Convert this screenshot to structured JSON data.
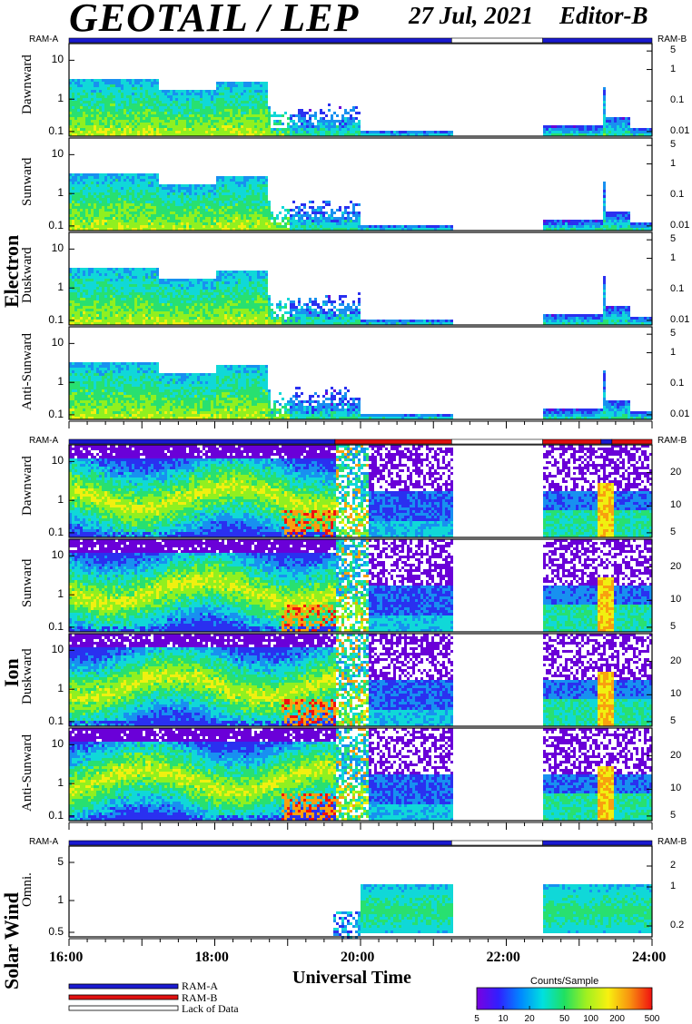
{
  "header": {
    "title": "GEOTAIL / LEP",
    "date": "27 Jul, 2021",
    "editor": "Editor-B"
  },
  "groups": [
    {
      "label": "Electron",
      "ram_left": "RAM-A",
      "ram_right": "RAM-B",
      "ram_segments": [
        {
          "start": 16.0,
          "end": 21.25,
          "state": "RAM-A"
        },
        {
          "start": 21.25,
          "end": 22.5,
          "state": "Lack of Data"
        },
        {
          "start": 22.5,
          "end": 24.0,
          "state": "RAM-A"
        }
      ],
      "panels": [
        {
          "label": "Dawnward",
          "left_ticks": [
            "10",
            "1",
            "0.1"
          ],
          "right_ticks": [
            "5",
            "1",
            "0.1",
            "0.01"
          ]
        },
        {
          "label": "Sunward",
          "left_ticks": [
            "10",
            "1",
            "0.1"
          ],
          "right_ticks": [
            "5",
            "1",
            "0.1",
            "0.01"
          ]
        },
        {
          "label": "Duskward",
          "left_ticks": [
            "10",
            "1",
            "0.1"
          ],
          "right_ticks": [
            "5",
            "1",
            "0.1",
            "0.01"
          ]
        },
        {
          "label": "Anti-Sunward",
          "left_ticks": [
            "10",
            "1",
            "0.1"
          ],
          "right_ticks": [
            "5",
            "1",
            "0.1",
            "0.01"
          ]
        }
      ]
    },
    {
      "label": "Ion",
      "ram_left": "RAM-A",
      "ram_right": "RAM-B",
      "ram_segments": [
        {
          "start": 16.0,
          "end": 19.65,
          "state": "RAM-A"
        },
        {
          "start": 19.65,
          "end": 21.25,
          "state": "RAM-B"
        },
        {
          "start": 21.25,
          "end": 22.5,
          "state": "Lack of Data"
        },
        {
          "start": 22.5,
          "end": 23.3,
          "state": "RAM-B"
        },
        {
          "start": 23.3,
          "end": 23.45,
          "state": "RAM-A"
        },
        {
          "start": 23.45,
          "end": 24.0,
          "state": "RAM-B"
        }
      ],
      "panels": [
        {
          "label": "Dawnward",
          "left_ticks": [
            "10",
            "1",
            "0.1"
          ],
          "right_ticks": [
            "20",
            "10",
            "5"
          ]
        },
        {
          "label": "Sunward",
          "left_ticks": [
            "10",
            "1",
            "0.1"
          ],
          "right_ticks": [
            "20",
            "10",
            "5"
          ]
        },
        {
          "label": "Duskward",
          "left_ticks": [
            "10",
            "1",
            "0.1"
          ],
          "right_ticks": [
            "20",
            "10",
            "5"
          ]
        },
        {
          "label": "Anti-Sunward",
          "left_ticks": [
            "10",
            "1",
            "0.1"
          ],
          "right_ticks": [
            "20",
            "10",
            "5"
          ]
        }
      ]
    },
    {
      "label": "Solar Wind",
      "ram_left": "RAM-A",
      "ram_right": "RAM-B",
      "ram_segments": [
        {
          "start": 16.0,
          "end": 21.25,
          "state": "RAM-A"
        },
        {
          "start": 21.25,
          "end": 22.5,
          "state": "Lack of Data"
        },
        {
          "start": 22.5,
          "end": 24.0,
          "state": "RAM-A"
        }
      ],
      "panels": [
        {
          "label": "Omni.",
          "left_ticks": [
            "5",
            "1",
            "0.5"
          ],
          "right_ticks": [
            "2",
            "1",
            "0.2"
          ]
        }
      ]
    }
  ],
  "chart_data": {
    "type": "heatmap",
    "title": "GEOTAIL / LEP",
    "xlabel": "Universal Time",
    "x_range": [
      "16:00",
      "24:00"
    ],
    "x_ticks": [
      "16:00",
      "18:00",
      "20:00",
      "22:00",
      "24:00"
    ],
    "data_gap": [
      "21:15",
      "22:30"
    ],
    "colorbar": {
      "title": "Counts/Sample",
      "ticks": [
        "5",
        "10",
        "20",
        "50",
        "100",
        "200",
        "500"
      ],
      "range": [
        5,
        500
      ],
      "scale": "log"
    }
  },
  "legend": [
    {
      "label": "RAM-A",
      "color": "#1a1ad0"
    },
    {
      "label": "RAM-B",
      "color": "#e01010"
    },
    {
      "label": "Lack of Data",
      "color": "#ffffff"
    }
  ]
}
